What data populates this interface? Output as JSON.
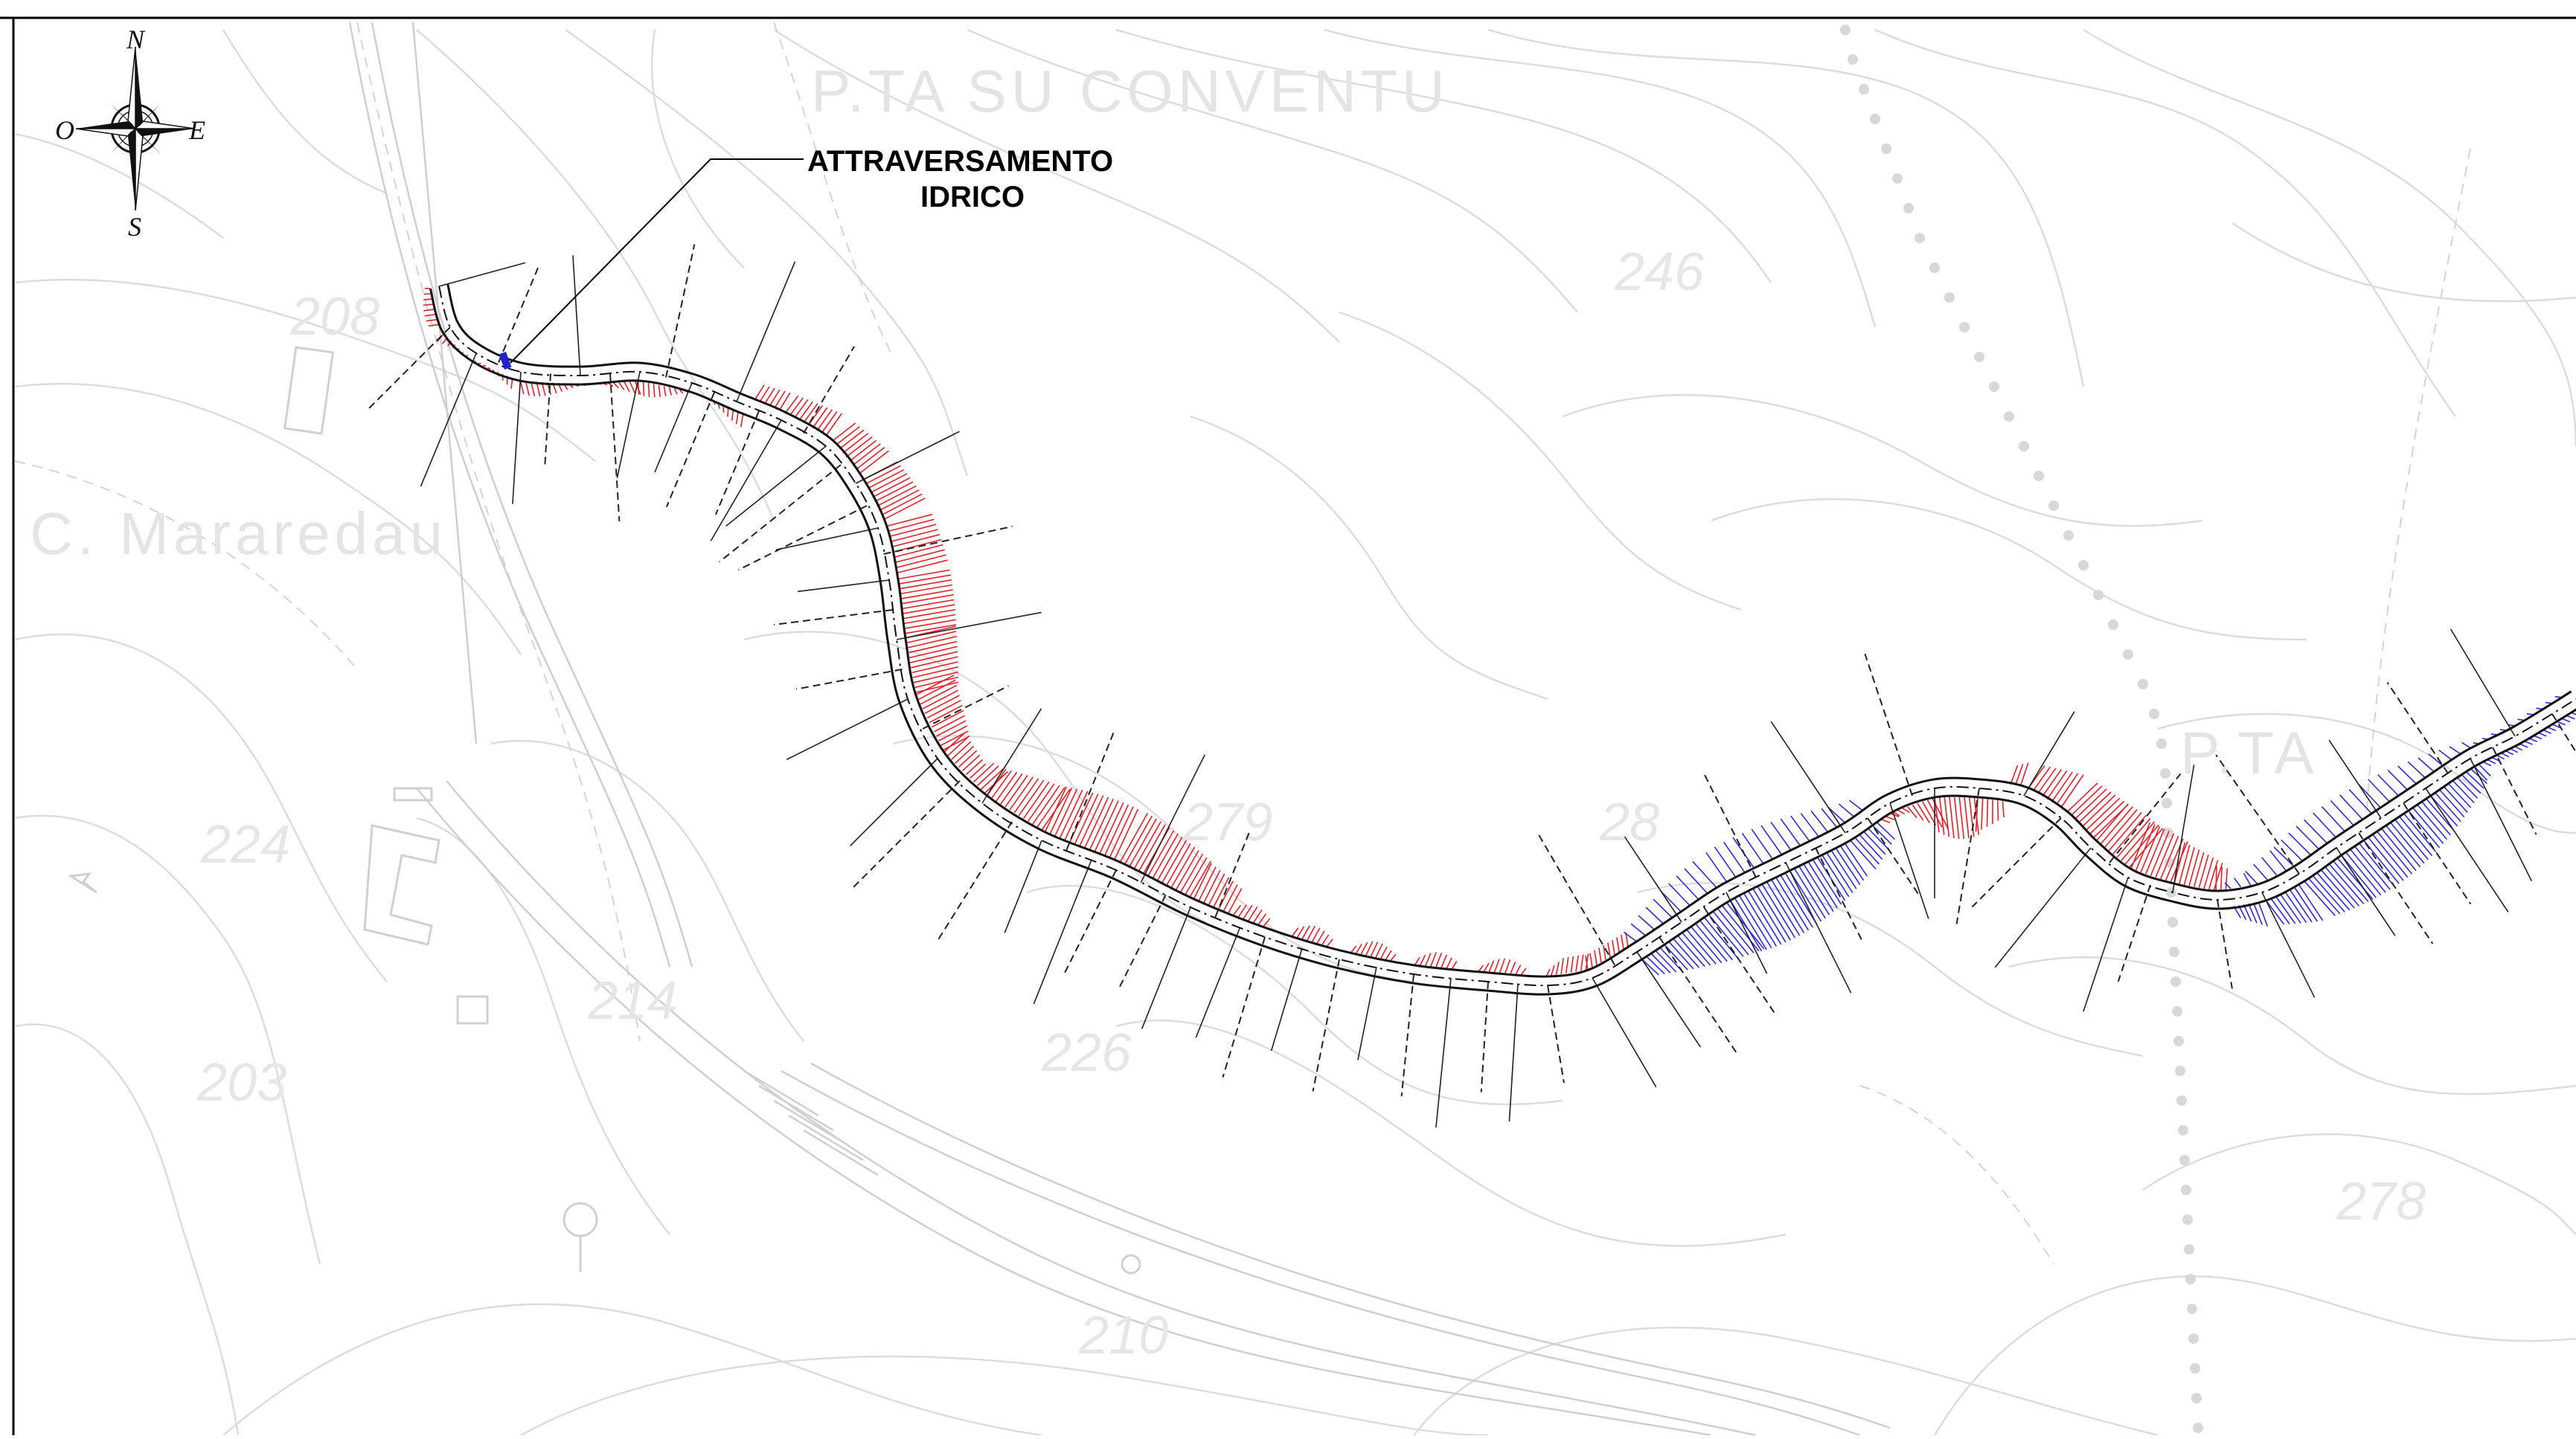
{
  "compass": {
    "north": "N",
    "south": "S",
    "east": "E",
    "west": "O",
    "icon": "compass-rose-icon"
  },
  "callout": {
    "line1": "ATTRAVERSAMENTO",
    "line2": "IDRICO"
  },
  "place_names": {
    "su_conventu": "P.TA SU CONVENTU",
    "mararedau": "C. Mararedau",
    "right_locality": "P.TA"
  },
  "contour_labels": [
    "208",
    "246",
    "224",
    "214",
    "203",
    "279",
    "226",
    "210",
    "278",
    "28"
  ],
  "colors": {
    "road_axis": "#111111",
    "excavation": "#e0202a",
    "embankment": "#2b2bd8",
    "contours": "#d9d9d9",
    "frame": "#000000"
  }
}
